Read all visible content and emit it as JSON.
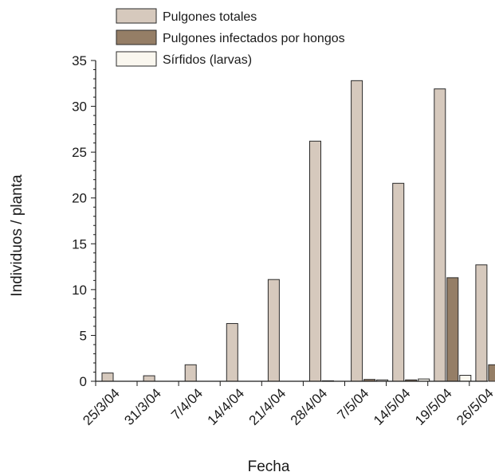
{
  "chart_data": {
    "type": "bar",
    "xlabel": "Fecha",
    "ylabel": "Individuos / planta",
    "ylim": [
      0,
      35
    ],
    "yticks": [
      0,
      5,
      10,
      15,
      20,
      25,
      30,
      35
    ],
    "grid": false,
    "legend_position": "top",
    "categories": [
      "25/3/04",
      "31/3/04",
      "7/4/04",
      "14/4/04",
      "21/4/04",
      "28/4/04",
      "7/5/04",
      "14/5/04",
      "19/5/04",
      "26/5/04"
    ],
    "series": [
      {
        "name": "Pulgones totales",
        "color": "#d6c9bd",
        "values": [
          0.9,
          0.6,
          1.8,
          6.3,
          11.1,
          26.2,
          32.8,
          21.6,
          31.9,
          12.7
        ]
      },
      {
        "name": "Pulgones infectados por hongos",
        "color": "#957e66",
        "values": [
          0.0,
          0.0,
          0.0,
          0.0,
          0.0,
          0.05,
          0.2,
          0.15,
          11.3,
          1.8
        ]
      },
      {
        "name": "Sírfidos (larvas)",
        "color": "#faf7ef",
        "values": [
          0.0,
          0.0,
          0.0,
          0.0,
          0.0,
          0.0,
          0.15,
          0.25,
          0.65,
          0.85
        ]
      }
    ]
  }
}
